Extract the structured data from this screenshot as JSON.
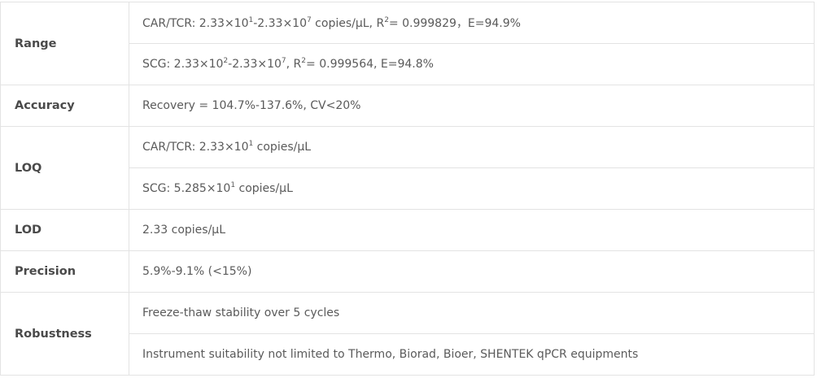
{
  "rows": [
    {
      "label": "Range",
      "values": [
        [
          {
            "text": "CAR/TCR: 2.33×10"
          },
          {
            "text": "1",
            "sup": true
          },
          {
            "text": "-2.33×10"
          },
          {
            "text": "7",
            "sup": true
          },
          {
            "text": " copies/μL, R"
          },
          {
            "text": "2",
            "sup": true
          },
          {
            "text": "= 0.999829，E=94.9%"
          }
        ],
        [
          {
            "text": "SCG: 2.33×10"
          },
          {
            "text": "2",
            "sup": true
          },
          {
            "text": "-2.33×10"
          },
          {
            "text": "7",
            "sup": true
          },
          {
            "text": ",  R"
          },
          {
            "text": "2",
            "sup": true
          },
          {
            "text": "= 0.999564, E=94.8%"
          }
        ]
      ]
    },
    {
      "label": "Accuracy",
      "values": [
        [
          {
            "text": "Recovery = 104.7%-137.6%, CV<20%"
          }
        ]
      ]
    },
    {
      "label": "LOQ",
      "values": [
        [
          {
            "text": "CAR/TCR: 2.33×10"
          },
          {
            "text": "1",
            "sup": true
          },
          {
            "text": " copies/μL"
          }
        ],
        [
          {
            "text": "SCG: 5.285×10"
          },
          {
            "text": "1",
            "sup": true
          },
          {
            "text": " copies/μL"
          }
        ]
      ]
    },
    {
      "label": "LOD",
      "values": [
        [
          {
            "text": "2.33 copies/μL"
          }
        ]
      ]
    },
    {
      "label": "Precision",
      "values": [
        [
          {
            "text": "5.9%-9.1% (<15%)"
          }
        ]
      ]
    },
    {
      "label": "Robustness",
      "values": [
        [
          {
            "text": "Freeze-thaw stability over 5 cycles"
          }
        ],
        [
          {
            "text": "Instrument suitability not limited to Thermo, Biorad, Bioer, SHENTEK qPCR equipments"
          }
        ]
      ]
    }
  ]
}
